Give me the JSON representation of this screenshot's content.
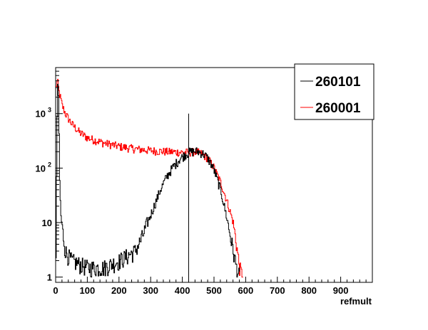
{
  "chart_data": {
    "type": "line",
    "title": "",
    "xlabel": "refmult",
    "ylabel": "",
    "xlim": [
      0,
      1000
    ],
    "ylim": [
      0.8,
      7000
    ],
    "y_scale": "log",
    "grid": false,
    "legend_position": "top-right",
    "x_ticks": [
      "0",
      "100",
      "200",
      "300",
      "400",
      "500",
      "600",
      "700",
      "800",
      "900"
    ],
    "x_tick_values": [
      0,
      100,
      200,
      300,
      400,
      500,
      600,
      700,
      800,
      900
    ],
    "y_ticks": [
      {
        "value": 1,
        "label": "1"
      },
      {
        "value": 10,
        "label": "10"
      },
      {
        "value": 100,
        "label": "10",
        "exp": "2"
      },
      {
        "value": 1000,
        "label": "10",
        "exp": "3"
      }
    ],
    "reference_line": {
      "x": 420,
      "y_top": 1000
    },
    "series": [
      {
        "name": "260101",
        "color": "#000000",
        "points": [
          [
            0,
            2
          ],
          [
            2,
            60
          ],
          [
            4,
            900
          ],
          [
            6,
            3500
          ],
          [
            8,
            1800
          ],
          [
            10,
            400
          ],
          [
            12,
            60
          ],
          [
            15,
            15
          ],
          [
            20,
            8
          ],
          [
            30,
            3
          ],
          [
            50,
            2
          ],
          [
            100,
            1.5
          ],
          [
            150,
            1.5
          ],
          [
            200,
            2
          ],
          [
            250,
            3
          ],
          [
            270,
            5
          ],
          [
            290,
            10
          ],
          [
            310,
            20
          ],
          [
            330,
            40
          ],
          [
            350,
            70
          ],
          [
            370,
            105
          ],
          [
            390,
            145
          ],
          [
            410,
            180
          ],
          [
            420,
            195
          ],
          [
            430,
            200
          ],
          [
            440,
            205
          ],
          [
            450,
            200
          ],
          [
            460,
            190
          ],
          [
            470,
            175
          ],
          [
            480,
            150
          ],
          [
            490,
            120
          ],
          [
            500,
            90
          ],
          [
            510,
            60
          ],
          [
            520,
            40
          ],
          [
            530,
            22
          ],
          [
            540,
            12
          ],
          [
            550,
            6
          ],
          [
            560,
            3
          ],
          [
            570,
            1.5
          ],
          [
            580,
            1
          ]
        ]
      },
      {
        "name": "260001",
        "color": "#ff0000",
        "points": [
          [
            0,
            3000
          ],
          [
            5,
            4000
          ],
          [
            10,
            2500
          ],
          [
            20,
            1400
          ],
          [
            30,
            1000
          ],
          [
            40,
            800
          ],
          [
            50,
            650
          ],
          [
            75,
            450
          ],
          [
            100,
            360
          ],
          [
            150,
            290
          ],
          [
            200,
            250
          ],
          [
            250,
            225
          ],
          [
            300,
            210
          ],
          [
            350,
            200
          ],
          [
            400,
            195
          ],
          [
            420,
            195
          ],
          [
            440,
            200
          ],
          [
            460,
            185
          ],
          [
            480,
            150
          ],
          [
            500,
            100
          ],
          [
            520,
            55
          ],
          [
            540,
            25
          ],
          [
            560,
            10
          ],
          [
            570,
            4
          ],
          [
            580,
            1.5
          ],
          [
            590,
            1
          ]
        ]
      }
    ]
  }
}
